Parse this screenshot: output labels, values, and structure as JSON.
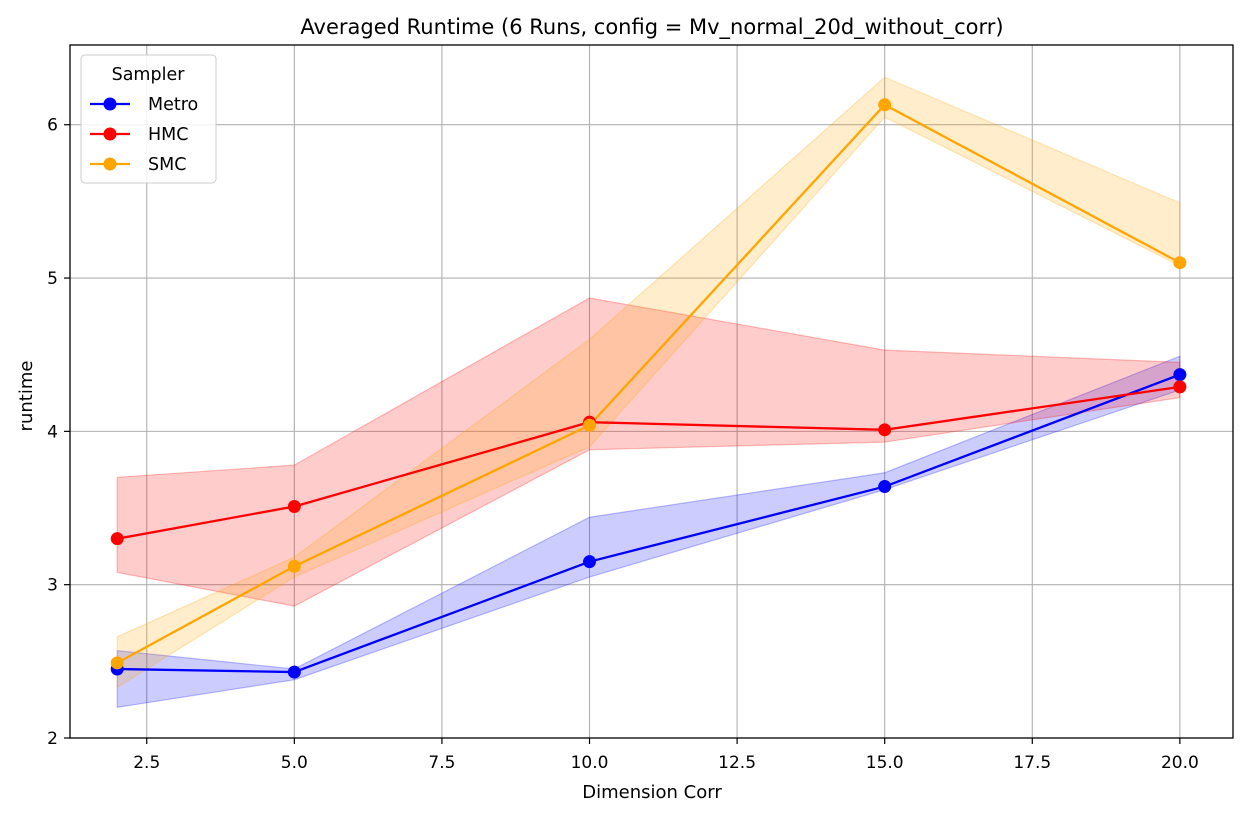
{
  "chart_data": {
    "type": "line",
    "title": "Averaged Runtime (6 Runs, config = Mv_normal_20d_without_corr)",
    "xlabel": "Dimension Corr",
    "ylabel": "runtime",
    "xlim": [
      1.2,
      20.9
    ],
    "ylim": [
      2.0,
      6.52
    ],
    "grid": true,
    "x": [
      2,
      5,
      10,
      15,
      20
    ],
    "xticks": [
      "2.5",
      "5.0",
      "7.5",
      "10.0",
      "12.5",
      "15.0",
      "17.5",
      "20.0"
    ],
    "yticks": [
      "2",
      "3",
      "4",
      "5",
      "6"
    ],
    "legend": {
      "title": "Sampler",
      "placement": "top-left"
    },
    "series": [
      {
        "name": "Metro",
        "color": "#0000ff",
        "values": [
          2.45,
          2.43,
          3.15,
          3.64,
          4.37
        ],
        "band_low": [
          2.2,
          2.38,
          3.05,
          3.62,
          4.27
        ],
        "band_high": [
          2.57,
          2.45,
          3.44,
          3.73,
          4.49
        ]
      },
      {
        "name": "HMC",
        "color": "#ff0000",
        "values": [
          3.3,
          3.51,
          4.06,
          4.01,
          4.29
        ],
        "band_low": [
          3.08,
          2.86,
          3.88,
          3.93,
          4.22
        ],
        "band_high": [
          3.7,
          3.78,
          4.87,
          4.53,
          4.45
        ]
      },
      {
        "name": "SMC",
        "color": "#ffa500",
        "values": [
          2.49,
          3.12,
          4.04,
          6.13,
          5.1
        ],
        "band_low": [
          2.33,
          3.05,
          3.9,
          6.05,
          5.08
        ],
        "band_high": [
          2.66,
          3.18,
          4.6,
          6.31,
          5.49
        ]
      }
    ]
  }
}
